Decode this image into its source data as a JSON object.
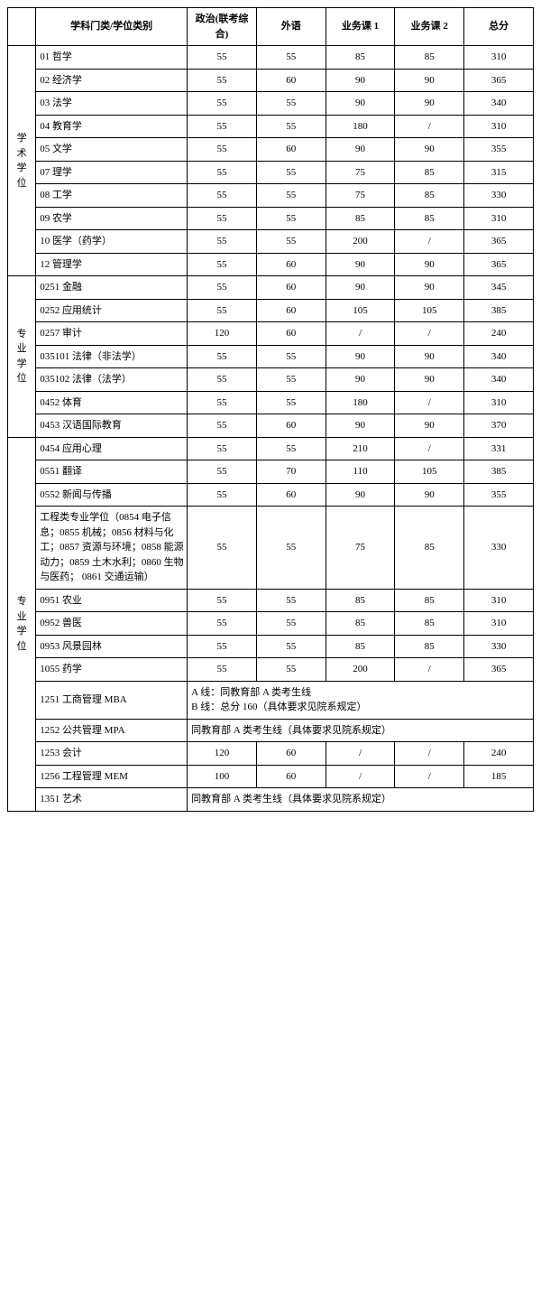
{
  "headers": {
    "col0": "",
    "col1": "学科门类/学位类别",
    "col2": "政治(联考综合)",
    "col3": "外语",
    "col4": "业务课 1",
    "col5": "业务课 2",
    "col6": "总分"
  },
  "groups": [
    {
      "label": "学术学位",
      "rows": [
        {
          "subj": "01 哲学",
          "c1": "55",
          "c2": "55",
          "c3": "85",
          "c4": "85",
          "c5": "310"
        },
        {
          "subj": "02 经济学",
          "c1": "55",
          "c2": "60",
          "c3": "90",
          "c4": "90",
          "c5": "365"
        },
        {
          "subj": "03 法学",
          "c1": "55",
          "c2": "55",
          "c3": "90",
          "c4": "90",
          "c5": "340"
        },
        {
          "subj": "04 教育学",
          "c1": "55",
          "c2": "55",
          "c3": "180",
          "c4": "/",
          "c5": "310"
        },
        {
          "subj": "05 文学",
          "c1": "55",
          "c2": "60",
          "c3": "90",
          "c4": "90",
          "c5": "355"
        },
        {
          "subj": "07 理学",
          "c1": "55",
          "c2": "55",
          "c3": "75",
          "c4": "85",
          "c5": "315"
        },
        {
          "subj": "08 工学",
          "c1": "55",
          "c2": "55",
          "c3": "75",
          "c4": "85",
          "c5": "330"
        },
        {
          "subj": "09 农学",
          "c1": "55",
          "c2": "55",
          "c3": "85",
          "c4": "85",
          "c5": "310"
        },
        {
          "subj": "10 医学（药学）",
          "c1": "55",
          "c2": "55",
          "c3": "200",
          "c4": "/",
          "c5": "365"
        },
        {
          "subj": "12 管理学",
          "c1": "55",
          "c2": "60",
          "c3": "90",
          "c4": "90",
          "c5": "365"
        }
      ]
    },
    {
      "label": "专业学位",
      "rows": [
        {
          "subj": "0251 金融",
          "c1": "55",
          "c2": "60",
          "c3": "90",
          "c4": "90",
          "c5": "345"
        },
        {
          "subj": "0252 应用统计",
          "c1": "55",
          "c2": "60",
          "c3": "105",
          "c4": "105",
          "c5": "385"
        },
        {
          "subj": "0257 审计",
          "c1": "120",
          "c2": "60",
          "c3": "/",
          "c4": "/",
          "c5": "240"
        },
        {
          "subj": "035101 法律（非法学）",
          "c1": "55",
          "c2": "55",
          "c3": "90",
          "c4": "90",
          "c5": "340"
        },
        {
          "subj": "035102 法律（法学）",
          "c1": "55",
          "c2": "55",
          "c3": "90",
          "c4": "90",
          "c5": "340"
        },
        {
          "subj": "0452 体育",
          "c1": "55",
          "c2": "55",
          "c3": "180",
          "c4": "/",
          "c5": "310"
        },
        {
          "subj": "0453 汉语国际教育",
          "c1": "55",
          "c2": "60",
          "c3": "90",
          "c4": "90",
          "c5": "370"
        }
      ]
    },
    {
      "label": "专业学位",
      "rows": [
        {
          "subj": "0454 应用心理",
          "c1": "55",
          "c2": "55",
          "c3": "210",
          "c4": "/",
          "c5": "331"
        },
        {
          "subj": "0551 翻译",
          "c1": "55",
          "c2": "70",
          "c3": "110",
          "c4": "105",
          "c5": "385"
        },
        {
          "subj": "0552 新闻与传播",
          "c1": "55",
          "c2": "60",
          "c3": "90",
          "c4": "90",
          "c5": "355"
        },
        {
          "subj": "工程类专业学位（0854 电子信息；0855 机械；0856 材料与化工；0857 资源与环境；0858 能源动力；0859 土木水利；0860 生物与医药； 0861 交通运输）",
          "c1": "55",
          "c2": "55",
          "c3": "75",
          "c4": "85",
          "c5": "330"
        },
        {
          "subj": "0951 农业",
          "c1": "55",
          "c2": "55",
          "c3": "85",
          "c4": "85",
          "c5": "310"
        },
        {
          "subj": "0952 兽医",
          "c1": "55",
          "c2": "55",
          "c3": "85",
          "c4": "85",
          "c5": "310"
        },
        {
          "subj": "0953 风景园林",
          "c1": "55",
          "c2": "55",
          "c3": "85",
          "c4": "85",
          "c5": "330"
        },
        {
          "subj": "1055 药学",
          "c1": "55",
          "c2": "55",
          "c3": "200",
          "c4": "/",
          "c5": "365"
        },
        {
          "subj": "1251 工商管理 MBA",
          "merged": "A 线：同教育部 A 类考生线\nB 线：总分 160（具体要求见院系规定）"
        },
        {
          "subj": "1252 公共管理 MPA",
          "merged": "同教育部 A 类考生线（具体要求见院系规定）"
        },
        {
          "subj": "1253 会计",
          "c1": "120",
          "c2": "60",
          "c3": "/",
          "c4": "/",
          "c5": "240"
        },
        {
          "subj": "1256 工程管理 MEM",
          "c1": "100",
          "c2": "60",
          "c3": "/",
          "c4": "/",
          "c5": "185"
        },
        {
          "subj": "1351 艺术",
          "merged": "同教育部 A 类考生线（具体要求见院系规定）"
        }
      ]
    }
  ],
  "col_widths": {
    "c0": 26,
    "c1": 128,
    "c2": 62,
    "c3": 62,
    "c4": 62,
    "c5": 62,
    "c6": 62
  }
}
